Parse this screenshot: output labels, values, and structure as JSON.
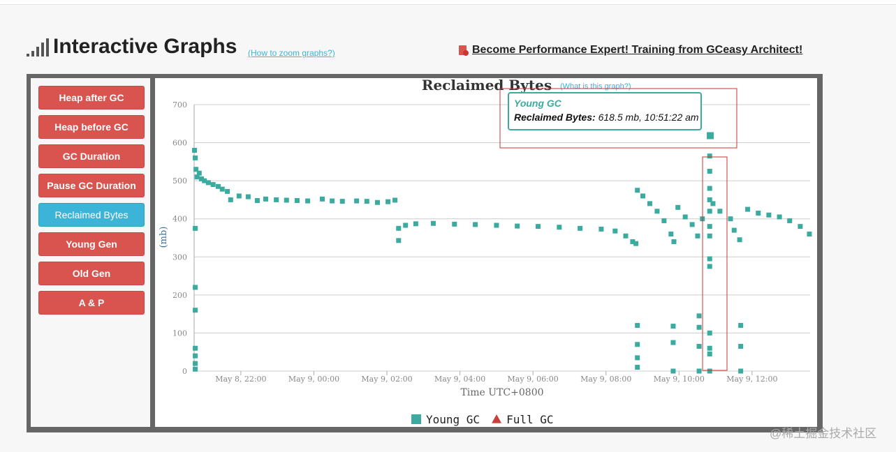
{
  "header": {
    "title": "Interactive Graphs",
    "zoom_link": "(How to zoom graphs?)",
    "promo_link": "Become Performance Expert! Training from GCeasy Architect!"
  },
  "buttons": [
    "Heap after GC",
    "Heap before GC",
    "GC Duration",
    "Pause GC Duration",
    "Reclaimed Bytes",
    "Young Gen",
    "Old Gen",
    "A & P"
  ],
  "active_button": "Reclaimed Bytes",
  "chart_data": {
    "type": "scatter",
    "title": "Reclaimed Bytes",
    "help_link": "(What is this graph?)",
    "xlabel": "Time UTC+0800",
    "ylabel": "(mb)",
    "xlim": [
      -3.28,
      13.59
    ],
    "xticks": [
      {
        "value": -2,
        "label": "May 8, 22:00"
      },
      {
        "value": 0,
        "label": "May 9, 00:00"
      },
      {
        "value": 2,
        "label": "May 9, 02:00"
      },
      {
        "value": 4,
        "label": "May 9, 04:00"
      },
      {
        "value": 6,
        "label": "May 9, 06:00"
      },
      {
        "value": 8,
        "label": "May 9, 08:00"
      },
      {
        "value": 10,
        "label": "May 9, 10:00"
      },
      {
        "value": 12,
        "label": "May 9, 12:00"
      }
    ],
    "ylim": [
      0,
      700
    ],
    "yticks": [
      0,
      100,
      200,
      300,
      400,
      500,
      600,
      700
    ],
    "grid": true,
    "series": [
      {
        "name": "Young GC",
        "color": "#3aab9e",
        "marker": "square",
        "x": [
          -3.27,
          -3.25,
          -3.23,
          -3.2,
          -3.14,
          -3.08,
          -3.0,
          -2.89,
          -2.76,
          -2.62,
          -2.51,
          -2.37,
          -3.25,
          -3.25,
          -3.25,
          -3.25,
          -3.25,
          -3.25,
          -3.25,
          -2.28,
          -2.05,
          -1.8,
          -1.55,
          -1.32,
          -1.03,
          -0.75,
          -0.46,
          -0.17,
          0.23,
          0.5,
          0.78,
          1.17,
          1.45,
          1.74,
          2.03,
          2.22,
          2.32,
          2.32,
          2.51,
          2.79,
          3.27,
          3.85,
          4.42,
          5.0,
          5.57,
          6.14,
          6.72,
          7.29,
          7.87,
          8.25,
          8.54,
          8.73,
          8.82,
          8.86,
          9.01,
          9.2,
          9.4,
          9.59,
          9.78,
          9.86,
          8.86,
          8.86,
          8.86,
          8.86,
          9.84,
          9.84,
          9.84,
          9.97,
          10.17,
          10.36,
          10.51,
          10.55,
          10.55,
          10.55,
          10.55,
          10.64,
          10.856,
          10.84,
          10.84,
          10.84,
          10.84,
          10.84,
          10.84,
          10.84,
          10.84,
          10.84,
          10.84,
          10.84,
          10.84,
          10.84,
          10.93,
          11.12,
          11.41,
          11.51,
          11.66,
          11.69,
          11.69,
          11.69,
          11.88,
          12.17,
          12.46,
          12.75,
          13.03,
          13.32,
          13.57
        ],
        "values": [
          580,
          560,
          530,
          510,
          520,
          505,
          500,
          495,
          490,
          485,
          478,
          472,
          375,
          220,
          160,
          60,
          40,
          20,
          5,
          450,
          460,
          458,
          448,
          452,
          450,
          449,
          448,
          447,
          452,
          447,
          446,
          447,
          446,
          443,
          445,
          449,
          343,
          375,
          383,
          387,
          388,
          386,
          385,
          383,
          381,
          380,
          378,
          375,
          373,
          368,
          355,
          340,
          335,
          475,
          460,
          440,
          420,
          395,
          360,
          340,
          120,
          70,
          35,
          10,
          118,
          75,
          0,
          430,
          405,
          385,
          355,
          145,
          115,
          65,
          0,
          400,
          618.5,
          565,
          525,
          480,
          450,
          420,
          380,
          355,
          295,
          275,
          100,
          60,
          45,
          0,
          440,
          420,
          400,
          370,
          345,
          120,
          65,
          0,
          425,
          415,
          410,
          405,
          395,
          380,
          360
        ]
      },
      {
        "name": "Full GC",
        "color": "#c9403a",
        "marker": "triangle",
        "x": [],
        "values": []
      }
    ]
  },
  "tooltip": {
    "series": "Young GC",
    "label": "Reclaimed Bytes:",
    "text": "618.5 mb, 10:51:22 am"
  },
  "watermark": "@稀土掘金技术社区"
}
